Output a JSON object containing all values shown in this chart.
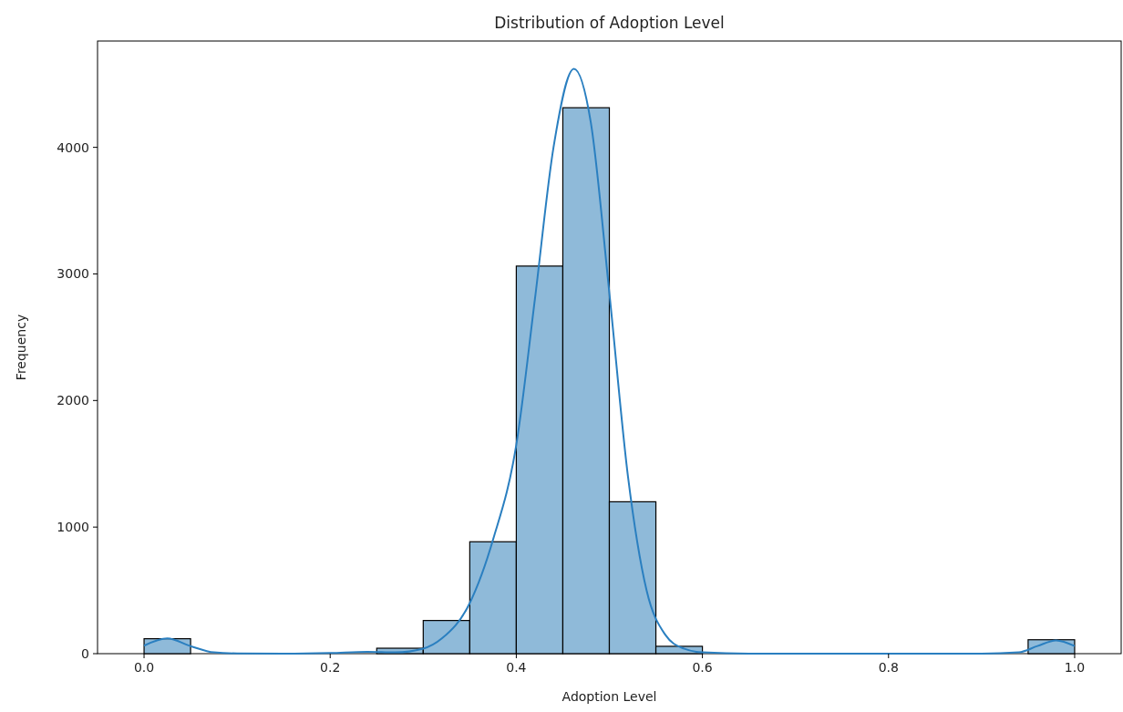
{
  "chart_data": {
    "type": "histogram",
    "title": "Distribution of Adoption Level",
    "xlabel": "Adoption Level",
    "ylabel": "Frequency",
    "bins": [
      0,
      0.05,
      0.1,
      0.15,
      0.2,
      0.25,
      0.3,
      0.35,
      0.4,
      0.45,
      0.5,
      0.55,
      0.6,
      0.65,
      0.7,
      0.75,
      0.8,
      0.85,
      0.9,
      0.95,
      1.0
    ],
    "series": [
      {
        "color": "#8fbad9",
        "values": [
          118,
          0,
          0,
          0,
          0,
          43,
          262,
          884,
          3062,
          4313,
          1200,
          58,
          0,
          0,
          0,
          0,
          0,
          0,
          0,
          110
        ]
      },
      {
        "type": "line",
        "color": "#2a7fc0",
        "x": [
          0,
          0.025,
          0.05,
          0.075,
          0.1,
          0.15,
          0.2,
          0.24,
          0.27,
          0.3,
          0.32,
          0.35,
          0.375,
          0.4,
          0.42,
          0.44,
          0.462,
          0.48,
          0.5,
          0.52,
          0.54,
          0.56,
          0.58,
          0.6,
          0.65,
          0.9,
          0.94,
          0.96,
          0.98,
          1.0
        ],
        "values": [
          63,
          120,
          60,
          10,
          2,
          0,
          5,
          15,
          10,
          40,
          120,
          400,
          900,
          1650,
          2800,
          4000,
          4620,
          4200,
          2850,
          1400,
          500,
          150,
          40,
          10,
          0,
          0,
          10,
          60,
          105,
          60
        ]
      }
    ],
    "xlim": [
      -0.05,
      1.05
    ],
    "xticks": [
      {
        "value": 0,
        "label": "0.0"
      },
      0.2,
      0.4,
      0.6,
      0.8,
      {
        "value": 1,
        "label": "1.0"
      }
    ],
    "ylim": [
      0,
      4840
    ],
    "yticks": [
      0,
      1000,
      2000,
      3000,
      4000
    ]
  }
}
